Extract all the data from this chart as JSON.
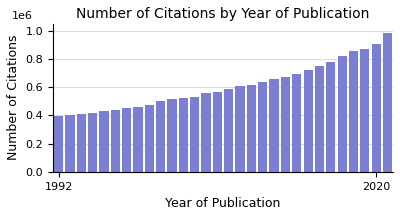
{
  "title": "Number of Citations by Year of Publication",
  "xlabel": "Year of Publication",
  "ylabel": "Number of Citations",
  "bar_color": "#7b7fd4",
  "years": [
    1992,
    1993,
    1994,
    1995,
    1996,
    1997,
    1998,
    1999,
    2000,
    2001,
    2002,
    2003,
    2004,
    2005,
    2006,
    2007,
    2008,
    2009,
    2010,
    2011,
    2012,
    2013,
    2014,
    2015,
    2016,
    2017,
    2018,
    2019,
    2020,
    2021
  ],
  "values": [
    393000,
    401000,
    410000,
    418000,
    427000,
    437000,
    449000,
    462000,
    476000,
    498000,
    514000,
    524000,
    531000,
    556000,
    563000,
    585000,
    610000,
    616000,
    633000,
    656000,
    669000,
    694000,
    719000,
    747000,
    779000,
    817000,
    856000,
    870000,
    905000,
    983000
  ],
  "ylim": [
    0,
    1050000
  ],
  "background_color": "#ffffff",
  "grid_color": "#cccccc",
  "title_fontsize": 10,
  "label_fontsize": 9,
  "tick_fontsize": 8,
  "xticks": [
    1992,
    2020
  ]
}
